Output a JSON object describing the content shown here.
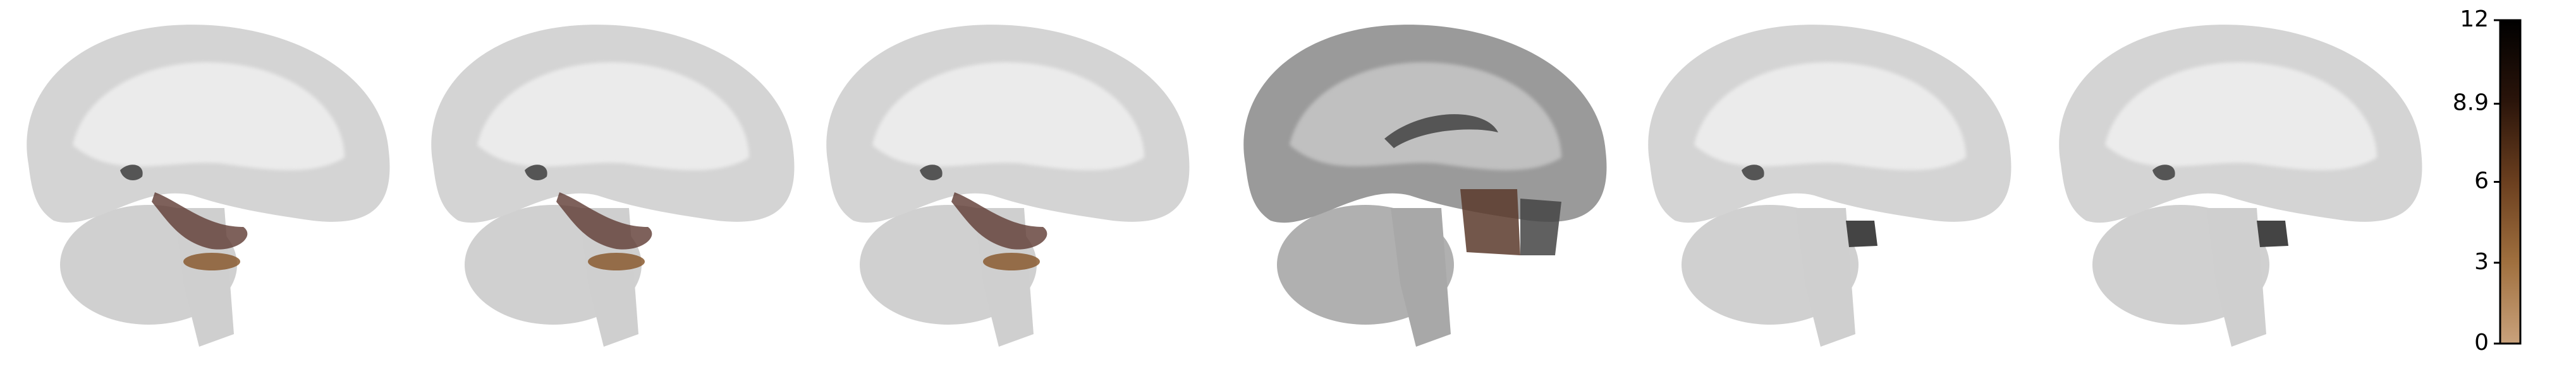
{
  "chart_data": {
    "type": "colorbar",
    "ylim": [
      0,
      12
    ],
    "yticks": [
      0,
      3,
      6,
      8.9,
      12
    ],
    "colors": [
      "#c9a27c",
      "#a0703f",
      "#6b3f1f",
      "#2a140a",
      "#000000"
    ]
  }
}
